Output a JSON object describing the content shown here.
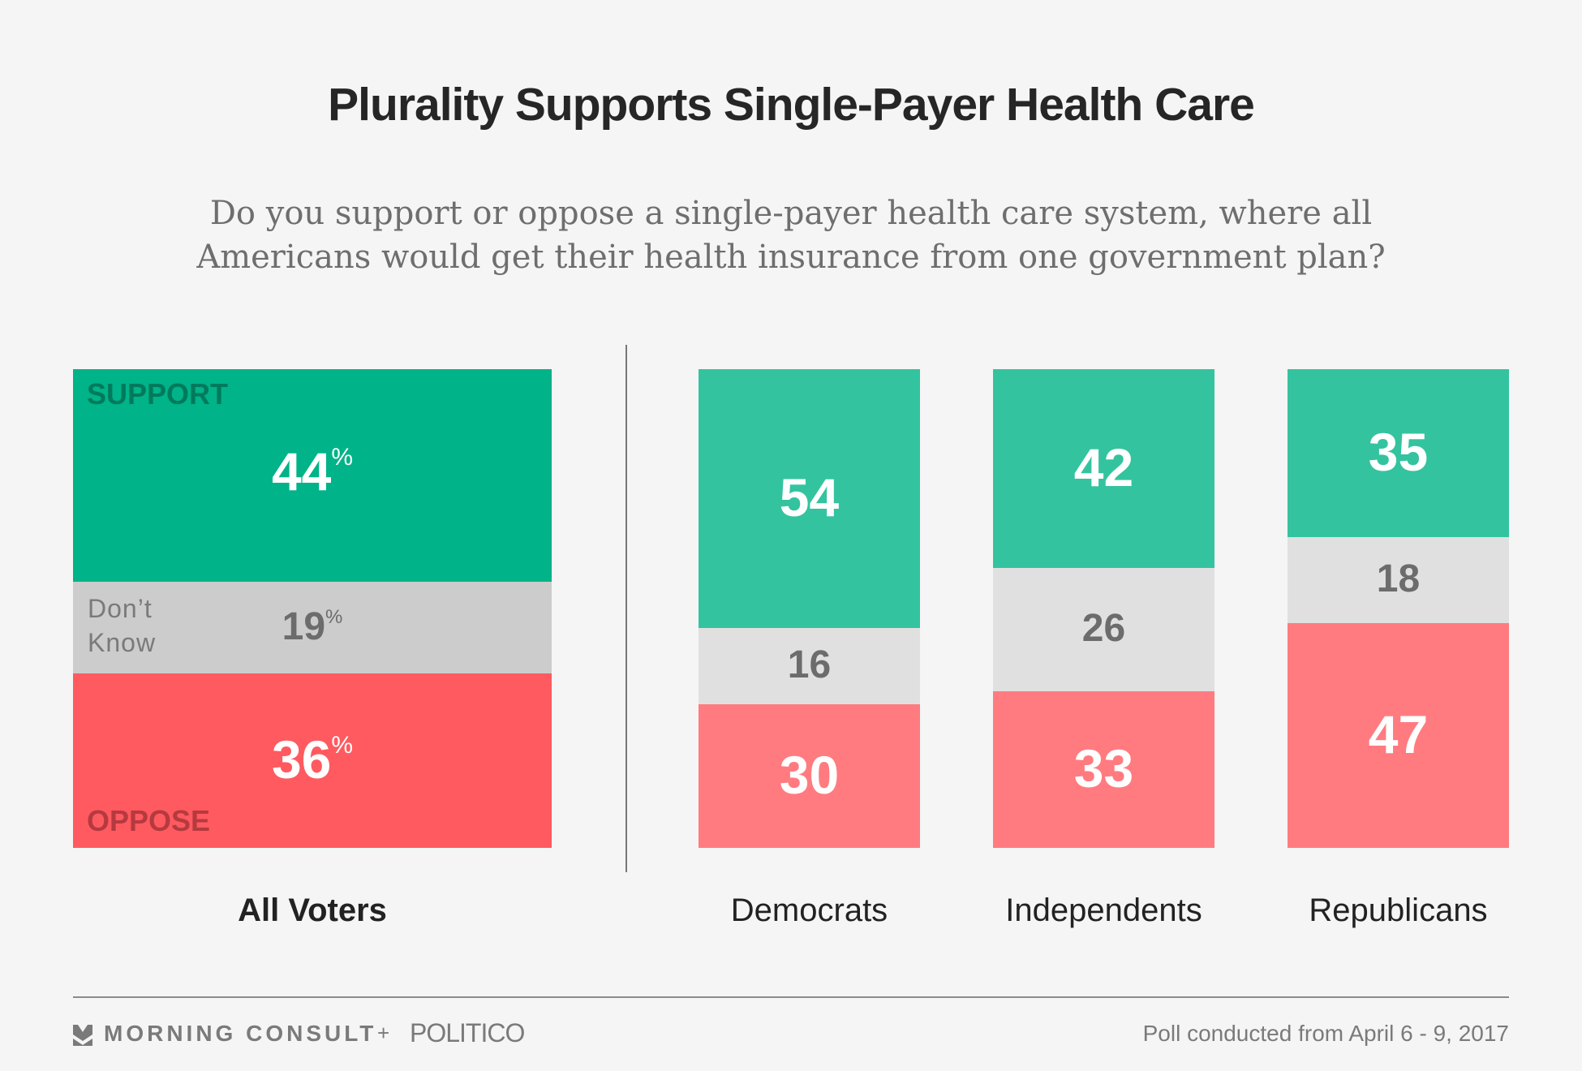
{
  "chart_data": {
    "type": "bar",
    "stacked": true,
    "title": "Plurality Supports Single-Payer Health Care",
    "subtitle_lines": [
      "Do you support or oppose a single-payer health care system, where all",
      "Americans would get their health insurance from one government plan?"
    ],
    "categories": [
      "All Voters",
      "Democrats",
      "Independents",
      "Republicans"
    ],
    "series": [
      {
        "name": "SUPPORT",
        "values": [
          44,
          54,
          42,
          35
        ]
      },
      {
        "name": "Don't Know",
        "values": [
          19,
          16,
          26,
          18
        ]
      },
      {
        "name": "OPPOSE",
        "values": [
          36,
          30,
          33,
          47
        ]
      }
    ],
    "unit": "%",
    "ylim": [
      0,
      100
    ]
  },
  "labels": {
    "support": "SUPPORT",
    "dont_know_1": "Don’t",
    "dont_know_2": "Know",
    "oppose": "OPPOSE",
    "percent": "%"
  },
  "all_voters": {
    "support": "44",
    "dont_know": "19",
    "oppose": "36"
  },
  "groups": [
    {
      "support": "54",
      "dont_know": "16",
      "oppose": "30"
    },
    {
      "support": "42",
      "dont_know": "26",
      "oppose": "33"
    },
    {
      "support": "35",
      "dont_know": "18",
      "oppose": "47"
    }
  ],
  "footer": {
    "brand": "MORNING CONSULT",
    "plus": "+",
    "partner": "POLITICO",
    "note": "Poll conducted from April 6 - 9, 2017"
  },
  "colors": {
    "background": "#f5f5f5",
    "support_main": "#00b388",
    "dontknow_main": "#cccccc",
    "oppose_main": "#ff5a5f",
    "support_group": "#34c39f",
    "dontknow_group": "#e0e0e0",
    "oppose_group": "#ff7b80",
    "support_tag": "#007a5c",
    "oppose_tag": "#b53a40"
  }
}
